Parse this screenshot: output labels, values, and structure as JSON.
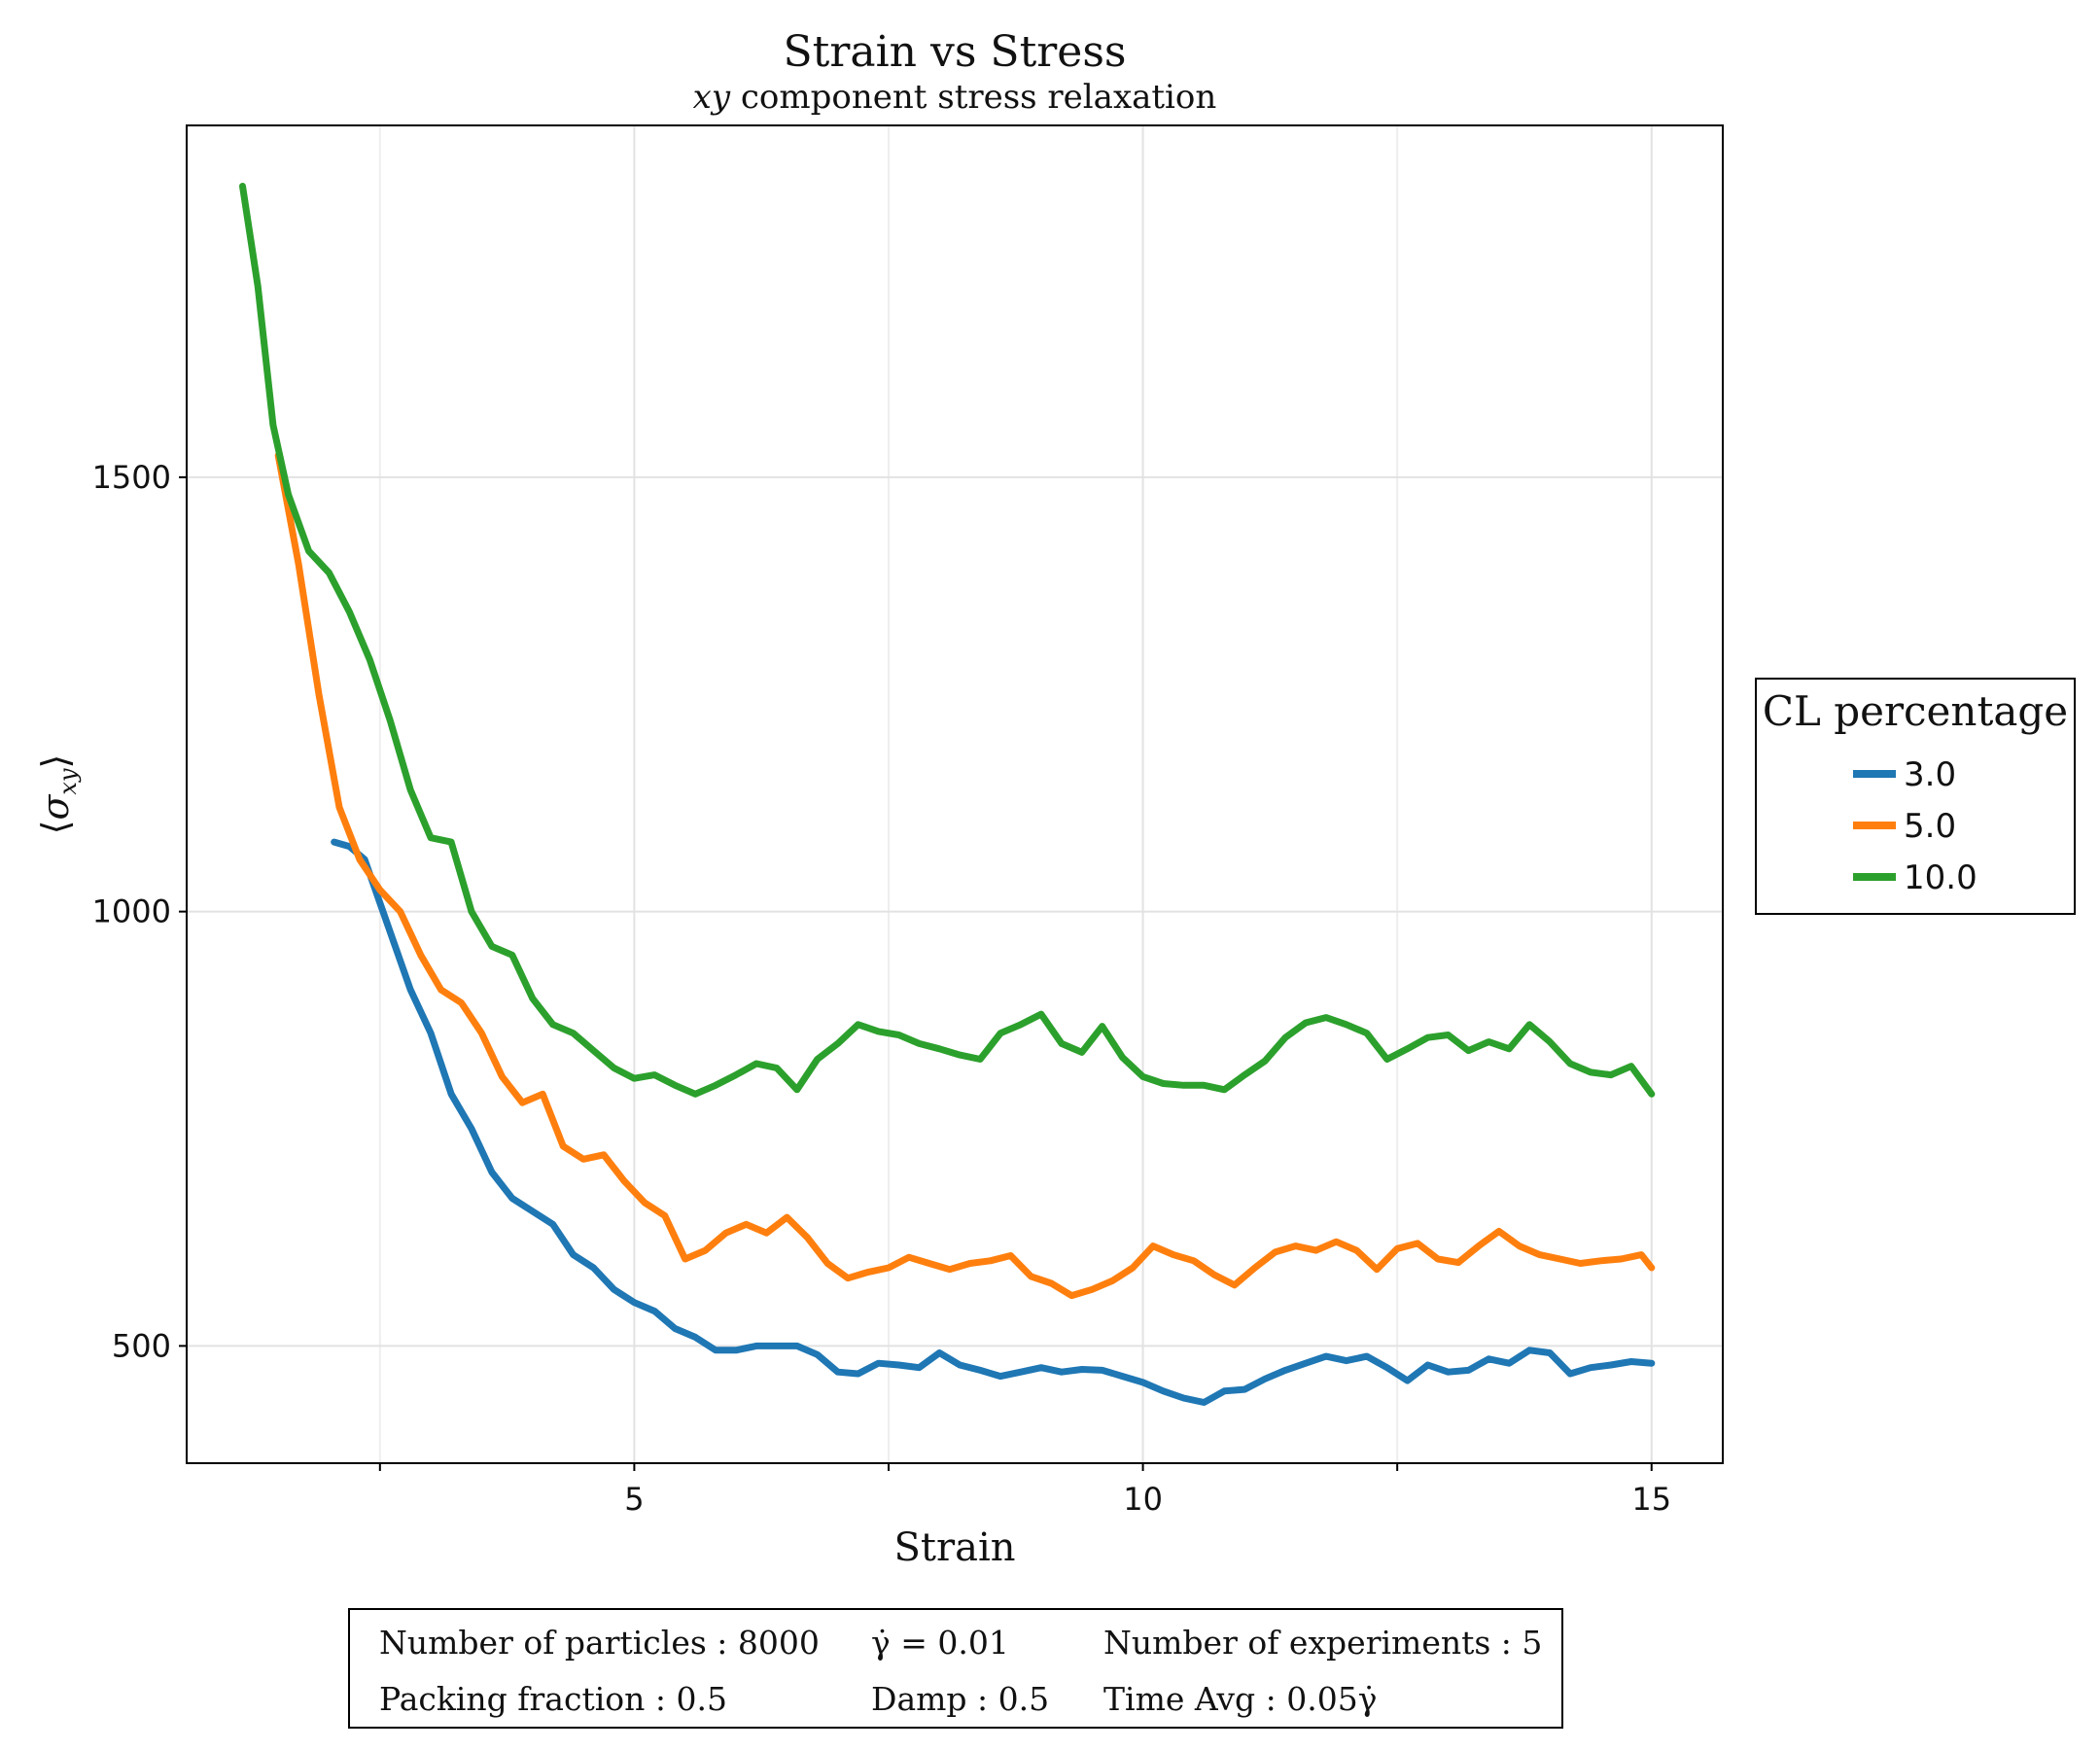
{
  "chart_data": {
    "type": "line",
    "title": "Strain vs Stress",
    "subtitle": "xy component stress relaxation",
    "subtitle_math": "xy",
    "subtitle_rest": " component stress relaxation",
    "xlabel": "Strain",
    "ylabel": "⟨σ_xy⟩",
    "xlim": [
      0.6,
      15.7
    ],
    "ylim": [
      365,
      1905
    ],
    "x_ticks": [
      5,
      10,
      15
    ],
    "x_tick_labels": [
      "5",
      "10",
      "15"
    ],
    "x_minor_ticks": [
      2.5,
      7.5,
      12.5
    ],
    "y_ticks": [
      500,
      1000,
      1500
    ],
    "y_tick_labels": [
      "500",
      "1000",
      "1500"
    ],
    "grid": true,
    "legend": {
      "title": "CL percentage",
      "position": "right"
    },
    "series": [
      {
        "name": "3.0",
        "color": "#1f77b4",
        "x": [
          2.05,
          2.2,
          2.35,
          2.5,
          2.65,
          2.8,
          3.0,
          3.2,
          3.4,
          3.6,
          3.8,
          4.0,
          4.2,
          4.4,
          4.6,
          4.8,
          5.0,
          5.2,
          5.4,
          5.6,
          5.8,
          6.0,
          6.2,
          6.4,
          6.6,
          6.8,
          7.0,
          7.2,
          7.4,
          7.6,
          7.8,
          8.0,
          8.2,
          8.4,
          8.6,
          8.8,
          9.0,
          9.2,
          9.4,
          9.6,
          9.8,
          10.0,
          10.2,
          10.4,
          10.6,
          10.8,
          11.0,
          11.2,
          11.4,
          11.6,
          11.8,
          12.0,
          12.2,
          12.4,
          12.6,
          12.8,
          13.0,
          13.2,
          13.4,
          13.6,
          13.8,
          14.0,
          14.2,
          14.4,
          14.6,
          14.8,
          15.0
        ],
        "values": [
          1080,
          1075,
          1060,
          1010,
          960,
          910,
          860,
          790,
          750,
          700,
          670,
          655,
          640,
          605,
          590,
          565,
          550,
          540,
          520,
          510,
          495,
          495,
          500,
          500,
          500,
          490,
          470,
          468,
          480,
          478,
          475,
          492,
          478,
          472,
          465,
          470,
          475,
          470,
          473,
          472,
          465,
          458,
          448,
          440,
          435,
          448,
          450,
          462,
          472,
          480,
          488,
          483,
          488,
          475,
          460,
          478,
          470,
          472,
          485,
          480,
          495,
          492,
          468,
          475,
          478,
          482,
          480
        ]
      },
      {
        "name": "5.0",
        "color": "#ff7f0e",
        "x": [
          1.5,
          1.7,
          1.9,
          2.1,
          2.3,
          2.5,
          2.7,
          2.9,
          3.1,
          3.3,
          3.5,
          3.7,
          3.9,
          4.1,
          4.3,
          4.5,
          4.7,
          4.9,
          5.1,
          5.3,
          5.5,
          5.7,
          5.9,
          6.1,
          6.3,
          6.5,
          6.7,
          6.9,
          7.1,
          7.3,
          7.5,
          7.7,
          7.9,
          8.1,
          8.3,
          8.5,
          8.7,
          8.9,
          9.1,
          9.3,
          9.5,
          9.7,
          9.9,
          10.1,
          10.3,
          10.5,
          10.7,
          10.9,
          11.1,
          11.3,
          11.5,
          11.7,
          11.9,
          12.1,
          12.3,
          12.5,
          12.7,
          12.9,
          13.1,
          13.3,
          13.5,
          13.7,
          13.9,
          14.1,
          14.3,
          14.5,
          14.7,
          14.9,
          15.0
        ],
        "values": [
          1525,
          1400,
          1250,
          1120,
          1060,
          1025,
          1000,
          950,
          910,
          895,
          860,
          810,
          780,
          790,
          730,
          715,
          720,
          690,
          665,
          650,
          600,
          610,
          630,
          640,
          630,
          648,
          625,
          595,
          578,
          585,
          590,
          602,
          595,
          588,
          595,
          598,
          604,
          580,
          572,
          558,
          565,
          575,
          590,
          615,
          605,
          598,
          582,
          570,
          590,
          608,
          615,
          610,
          620,
          610,
          588,
          612,
          618,
          600,
          596,
          615,
          632,
          615,
          605,
          600,
          595,
          598,
          600,
          605,
          590
        ]
      },
      {
        "name": "10.0",
        "color": "#2ca02c",
        "x": [
          1.15,
          1.3,
          1.45,
          1.6,
          1.8,
          2.0,
          2.2,
          2.4,
          2.6,
          2.8,
          3.0,
          3.2,
          3.4,
          3.6,
          3.8,
          4.0,
          4.2,
          4.4,
          4.6,
          4.8,
          5.0,
          5.2,
          5.4,
          5.6,
          5.8,
          6.0,
          6.2,
          6.4,
          6.6,
          6.8,
          7.0,
          7.2,
          7.4,
          7.6,
          7.8,
          8.0,
          8.2,
          8.4,
          8.6,
          8.8,
          9.0,
          9.2,
          9.4,
          9.6,
          9.8,
          10.0,
          10.2,
          10.4,
          10.6,
          10.8,
          11.0,
          11.2,
          11.4,
          11.6,
          11.8,
          12.0,
          12.2,
          12.4,
          12.6,
          12.8,
          13.0,
          13.2,
          13.4,
          13.6,
          13.8,
          14.0,
          14.2,
          14.4,
          14.6,
          14.8,
          15.0
        ],
        "values": [
          1835,
          1720,
          1560,
          1480,
          1415,
          1390,
          1345,
          1290,
          1220,
          1140,
          1085,
          1080,
          1000,
          960,
          950,
          900,
          870,
          860,
          840,
          820,
          808,
          812,
          800,
          790,
          800,
          812,
          825,
          820,
          795,
          830,
          848,
          870,
          862,
          858,
          848,
          842,
          835,
          830,
          860,
          870,
          882,
          848,
          838,
          868,
          832,
          810,
          802,
          800,
          800,
          795,
          812,
          828,
          855,
          872,
          878,
          870,
          860,
          830,
          842,
          855,
          858,
          840,
          850,
          842,
          870,
          850,
          825,
          815,
          812,
          822,
          790
        ]
      }
    ]
  },
  "info_box": {
    "rows": [
      [
        "Number of particles : 8000",
        "γ̇ = 0.01",
        "Number of experiments : 5"
      ],
      [
        "Packing fraction : 0.5",
        "Damp : 0.5",
        "Time Avg : 0.05γ̇"
      ]
    ]
  }
}
